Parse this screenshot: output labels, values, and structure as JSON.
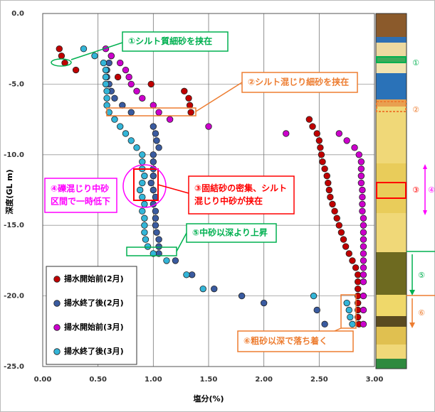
{
  "chart_data": {
    "type": "scatter",
    "xlabel": "塩分(%)",
    "ylabel": "深度(GL m)",
    "xlim": [
      0,
      3
    ],
    "ylim": [
      -25,
      0
    ],
    "xticks": [
      {
        "value": 0,
        "label": "0.00"
      },
      {
        "value": 0.5,
        "label": "0.50"
      },
      {
        "value": 1,
        "label": "1.00"
      },
      {
        "value": 1.5,
        "label": "1.50"
      },
      {
        "value": 2,
        "label": "2.00"
      },
      {
        "value": 2.5,
        "label": "2.50"
      },
      {
        "value": 3,
        "label": "3.00"
      }
    ],
    "yticks": [
      {
        "value": 0,
        "label": "0.0"
      },
      {
        "value": -5,
        "label": "-5.0"
      },
      {
        "value": -10,
        "label": "-10.0"
      },
      {
        "value": -15,
        "label": "-15.0"
      },
      {
        "value": -20,
        "label": "-20.0"
      },
      {
        "value": -25,
        "label": "-25.0"
      }
    ],
    "grid": true,
    "legend": "lower left",
    "series": [
      {
        "name": "揚水開始前(2月)",
        "color": "#c00000",
        "x": [
          0.15,
          0.17,
          0.2,
          0.3,
          0.68,
          0.98,
          1.28,
          1.32,
          1.33,
          1.34,
          2.41,
          2.44,
          2.48,
          2.5,
          2.51,
          2.52,
          2.53,
          2.55,
          2.57,
          2.58,
          2.59,
          2.6,
          2.62,
          2.64,
          2.66,
          2.68,
          2.7,
          2.72,
          2.74,
          2.77,
          2.8,
          2.83,
          2.85,
          2.85,
          2.85,
          2.85,
          2.85,
          2.85,
          2.85,
          2.86
        ],
        "values": [
          -2.5,
          -3,
          -3.5,
          -4,
          -4.5,
          -5,
          -5.5,
          -6,
          -6.5,
          -7,
          -7.5,
          -8,
          -8.5,
          -9,
          -9.5,
          -10,
          -10.5,
          -11,
          -11.5,
          -12,
          -12.5,
          -13,
          -13.5,
          -14,
          -14.5,
          -15,
          -15.5,
          -16,
          -16.5,
          -17,
          -17.5,
          -18,
          -18.5,
          -19,
          -19.5,
          -20,
          -20.5,
          -21,
          -21.5,
          -22
        ]
      },
      {
        "name": "揚水終了後(2月)",
        "color": "#3a5ba0",
        "x": [
          0.62,
          0.6,
          0.58,
          0.58,
          0.6,
          0.62,
          0.65,
          0.72,
          0.8,
          1.0,
          1.02,
          1.03,
          1.05,
          1.0,
          1.0,
          1.0,
          1.0,
          0.98,
          1.0,
          1.02,
          1.0,
          1.02,
          1.02,
          1.02,
          1.03,
          1.05,
          1.05,
          1.05,
          1.2,
          1.35,
          1.55,
          1.8,
          2.0,
          2.48,
          2.55
        ],
        "values": [
          -3,
          -3.5,
          -4,
          -4.5,
          -5,
          -5.5,
          -6,
          -6.5,
          -7,
          -8,
          -8.5,
          -9,
          -9.5,
          -10,
          -10.5,
          -11,
          -11.5,
          -12,
          -12.5,
          -13,
          -13.5,
          -14,
          -14.5,
          -15,
          -15.5,
          -16,
          -16.5,
          -17,
          -17.5,
          -18.5,
          -19.5,
          -20,
          -20.5,
          -21,
          -22
        ]
      },
      {
        "name": "揚水開始前(3月)",
        "color": "#cc00cc",
        "x": [
          0.57,
          0.62,
          0.7,
          0.75,
          0.78,
          0.8,
          0.85,
          0.9,
          1.0,
          1.05,
          1.15,
          1.5,
          2.2,
          2.68,
          2.75,
          2.82,
          2.86,
          2.88,
          2.88,
          2.88,
          2.88,
          2.89,
          2.89,
          2.89,
          2.89,
          2.9,
          2.9,
          2.9,
          2.9,
          2.9,
          2.9,
          2.9,
          2.9,
          2.9,
          2.9,
          2.9,
          2.9,
          2.9
        ],
        "values": [
          -2.5,
          -3,
          -3.5,
          -4,
          -4.5,
          -5,
          -5.5,
          -6,
          -6.5,
          -7,
          -7.5,
          -8,
          -8.5,
          -8.5,
          -9,
          -9.5,
          -10,
          -10.5,
          -11,
          -11.5,
          -12,
          -12.5,
          -13,
          -13.5,
          -14,
          -14.5,
          -15,
          -15.5,
          -16,
          -16.5,
          -17,
          -17.5,
          -18,
          -18.5,
          -19,
          -20,
          -21,
          -22
        ]
      },
      {
        "name": "揚水終了後(3月)",
        "color": "#33b5d8",
        "x": [
          0.37,
          0.47,
          0.55,
          0.57,
          0.57,
          0.57,
          0.58,
          0.58,
          0.58,
          0.6,
          0.65,
          0.7,
          0.75,
          0.8,
          0.85,
          0.9,
          0.9,
          0.9,
          0.92,
          0.9,
          0.88,
          0.9,
          0.92,
          0.9,
          0.92,
          0.92,
          0.92,
          0.93,
          0.95,
          1.0,
          1.12,
          1.3,
          1.45,
          2.45,
          2.75,
          2.77,
          2.78,
          2.8
        ],
        "values": [
          -2.5,
          -3,
          -3.5,
          -4,
          -4.5,
          -5,
          -5.5,
          -6,
          -6.5,
          -7,
          -7.5,
          -8,
          -8.5,
          -9,
          -9.5,
          -10,
          -10.5,
          -11,
          -11.5,
          -12,
          -12.5,
          -13,
          -13.5,
          -14,
          -14.5,
          -15,
          -15.5,
          -16,
          -16.5,
          -17,
          -17.5,
          -18.5,
          -19.5,
          -20,
          -20.5,
          -21,
          -21.5,
          -22
        ]
      }
    ],
    "annotations": [
      [
        "①シルト質細砂を挟在"
      ],
      [
        "②シルト混じり細砂を挟在"
      ],
      [
        "③固結砂の密集、シルト",
        "混じり中砂が挟在"
      ],
      [
        "④礫混じり中砂",
        "区間で一時低下"
      ],
      [
        "⑤中砂以深より上昇"
      ],
      [
        "⑥粗砂以深で落ち着く"
      ]
    ],
    "column_labels": [
      "①",
      "②",
      "③",
      "④",
      "⑤",
      "⑥"
    ]
  }
}
